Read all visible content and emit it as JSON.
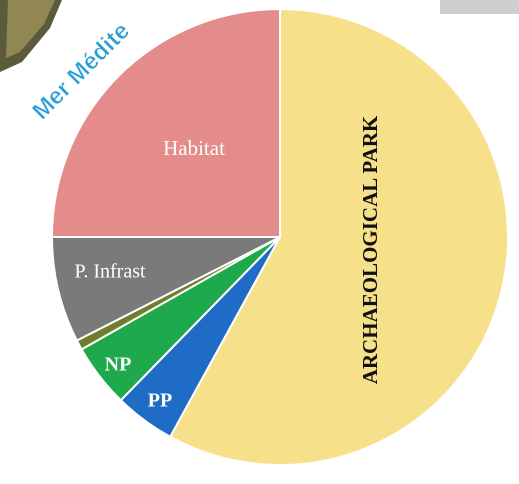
{
  "chart_data": {
    "type": "pie",
    "annotation": "Mer Médite",
    "categories": [
      "ARCHAEOLOGICAL PARK",
      "PP",
      "NP",
      null,
      "P. Infrast",
      "Habitat"
    ],
    "values": [
      58,
      4.3,
      4.5,
      0.7,
      7.5,
      25
    ],
    "colors": [
      "#f6e08a",
      "#1f6cc6",
      "#1ea94c",
      "#6f7d2c",
      "#7a7a7a",
      "#e48b8b"
    ]
  }
}
